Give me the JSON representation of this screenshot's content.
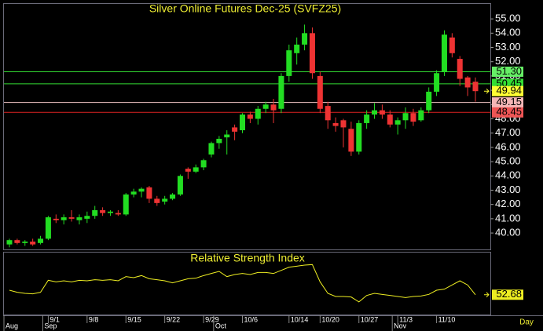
{
  "chart_data": [
    {
      "type": "candlestick",
      "title": "Silver Online Futures Dec-25 (SVFZ25)",
      "categories": [
        null,
        null,
        null,
        null,
        null,
        "9/1",
        null,
        null,
        null,
        null,
        "9/8",
        null,
        null,
        null,
        null,
        "9/15",
        null,
        null,
        null,
        null,
        "9/22",
        null,
        null,
        null,
        null,
        "9/29",
        null,
        null,
        null,
        null,
        "10/6",
        null,
        null,
        null,
        null,
        null,
        "10/14",
        null,
        null,
        null,
        "10/20",
        null,
        null,
        null,
        null,
        "10/27",
        null,
        null,
        null,
        null,
        "11/3",
        null,
        null,
        null,
        null,
        "11/10",
        null,
        null,
        null,
        null,
        null
      ],
      "months": [
        "Aug",
        null,
        null,
        null,
        null,
        "Sep",
        null,
        null,
        null,
        null,
        null,
        null,
        null,
        null,
        null,
        null,
        null,
        null,
        null,
        null,
        null,
        null,
        null,
        null,
        null,
        null,
        null,
        "Oct",
        null,
        null,
        null,
        null,
        null,
        null,
        null,
        null,
        null,
        null,
        null,
        null,
        null,
        null,
        null,
        null,
        null,
        null,
        null,
        null,
        null,
        null,
        "Nov",
        null,
        null,
        null,
        null,
        null,
        null,
        null,
        null,
        null,
        null
      ],
      "x_axis_label": "Day",
      "open": [
        39.2,
        39.5,
        39.3,
        39.4,
        39.3,
        39.6,
        41.0,
        40.9,
        41.1,
        40.9,
        41.0,
        41.2,
        41.6,
        41.4,
        41.4,
        41.3,
        42.7,
        42.9,
        43.2,
        42.4,
        42.2,
        42.4,
        42.7,
        44.5,
        44.3,
        44.6,
        45.5,
        46.3,
        46.7,
        47.4,
        47.2,
        48.3,
        48.0,
        48.7,
        49.0,
        48.7,
        51.0,
        52.6,
        53.2,
        54.0,
        51.0,
        48.9,
        47.7,
        47.9,
        47.3,
        45.7,
        47.7,
        48.3,
        48.6,
        48.3,
        47.6,
        47.9,
        48.4,
        47.9,
        48.6,
        49.9,
        51.3,
        53.7,
        52.2,
        50.9,
        50.6
      ],
      "high": [
        39.6,
        39.6,
        39.5,
        39.6,
        39.8,
        41.2,
        41.3,
        41.3,
        41.6,
        41.3,
        41.5,
        41.9,
        41.8,
        41.6,
        41.6,
        42.8,
        43.1,
        43.2,
        43.3,
        42.6,
        42.6,
        42.8,
        44.1,
        44.6,
        44.8,
        45.2,
        46.4,
        46.8,
        47.2,
        47.6,
        48.4,
        48.5,
        48.9,
        49.2,
        49.4,
        51.2,
        53.2,
        53.7,
        54.6,
        54.4,
        51.3,
        49.2,
        48.1,
        48.0,
        47.8,
        47.9,
        48.6,
        49.1,
        49.0,
        48.6,
        48.1,
        48.8,
        48.7,
        48.8,
        50.2,
        51.4,
        54.2,
        54.0,
        52.4,
        51.0,
        50.9
      ],
      "low": [
        39.0,
        39.2,
        39.1,
        39.1,
        39.2,
        39.5,
        40.7,
        40.6,
        40.8,
        40.6,
        40.7,
        41.0,
        41.2,
        41.2,
        41.2,
        41.2,
        42.5,
        42.5,
        42.1,
        41.9,
        42.0,
        42.3,
        42.6,
        43.8,
        44.2,
        44.4,
        45.3,
        45.9,
        45.5,
        46.5,
        47.0,
        47.7,
        47.6,
        48.4,
        47.7,
        48.4,
        50.6,
        51.8,
        52.8,
        50.8,
        48.4,
        47.3,
        47.1,
        46.0,
        45.4,
        45.5,
        47.3,
        48.0,
        48.0,
        47.4,
        46.9,
        47.3,
        47.5,
        47.8,
        48.4,
        49.6,
        51.0,
        52.3,
        50.3,
        49.6,
        49.2
      ],
      "close": [
        39.5,
        39.3,
        39.4,
        39.2,
        39.6,
        41.1,
        40.9,
        41.1,
        41.0,
        41.1,
        41.2,
        41.6,
        41.4,
        41.5,
        41.3,
        42.7,
        42.9,
        43.1,
        42.4,
        42.1,
        42.4,
        42.7,
        44.0,
        44.3,
        44.6,
        45.1,
        46.3,
        46.6,
        46.9,
        47.1,
        48.3,
        48.0,
        48.7,
        49.0,
        48.6,
        51.0,
        52.8,
        53.2,
        54.0,
        51.2,
        48.7,
        47.9,
        47.5,
        47.4,
        45.7,
        47.7,
        48.3,
        48.6,
        48.3,
        47.6,
        47.9,
        48.4,
        47.8,
        48.6,
        49.9,
        51.2,
        53.9,
        52.6,
        50.8,
        50.2,
        49.94
      ],
      "up_color": "#22dd22",
      "down_color": "#ee3333",
      "ylim": [
        38.85,
        56.05
      ],
      "yticks": [
        {
          "value": 40,
          "label": "40.00"
        },
        {
          "value": 41,
          "label": "41.00"
        },
        {
          "value": 42,
          "label": "42.00"
        },
        {
          "value": 43,
          "label": "43.00"
        },
        {
          "value": 44,
          "label": "44.00"
        },
        {
          "value": 45,
          "label": "45.00"
        },
        {
          "value": 46,
          "label": "46.00"
        },
        {
          "value": 47,
          "label": "47.00"
        },
        {
          "value": 48,
          "label": "48.00"
        },
        {
          "value": 49,
          "label": "49.00"
        },
        {
          "value": 50,
          "label": "50.00"
        },
        {
          "value": 51,
          "label": "51.00"
        },
        {
          "value": 52,
          "label": "52.00"
        },
        {
          "value": 53,
          "label": "53.00"
        },
        {
          "value": 54,
          "label": "54.00"
        },
        {
          "value": 55,
          "label": "55.00"
        }
      ],
      "levels": [
        {
          "value": 51.3,
          "label": "51.30",
          "color": "#33dd33",
          "box_color": "#66ee66",
          "show_line": true
        },
        {
          "value": 50.45,
          "label": "50.45",
          "color": "#33dd33",
          "box_color": "#33dd33",
          "show_line": true
        },
        {
          "value": 49.94,
          "label": "49.94",
          "color": "#ffff33",
          "box_color": "#ffff33",
          "show_line": false
        },
        {
          "value": 49.15,
          "label": "49.15",
          "color": "#f2c6c6",
          "box_color": "#f4b6b6",
          "show_line": true
        },
        {
          "value": 48.45,
          "label": "48.45",
          "color": "#dd2222",
          "box_color": "#ee5555",
          "show_line": true
        }
      ]
    },
    {
      "type": "line",
      "title": "Relative Strength Index",
      "values": [
        57,
        55,
        54,
        53.5,
        55,
        66.5,
        65,
        66,
        65,
        66.5,
        66,
        67,
        66.5,
        67,
        66,
        70,
        69,
        71,
        68,
        67,
        66,
        64,
        66,
        68,
        68.5,
        71,
        73,
        75,
        70,
        72,
        73,
        72,
        74,
        74,
        73,
        76,
        79,
        80,
        81,
        81.5,
        65,
        54,
        51,
        51,
        50.5,
        45.8,
        52,
        54,
        53,
        52,
        51,
        50,
        51,
        51.5,
        53,
        57,
        58,
        62,
        66,
        62,
        52.68
      ],
      "value_labels": [
        null,
        null,
        null,
        null,
        null,
        null,
        null,
        null,
        null,
        null,
        null,
        null,
        null,
        null,
        null,
        null,
        null,
        null,
        null,
        null,
        null,
        null,
        null,
        null,
        null,
        null,
        null,
        null,
        null,
        null,
        null,
        null,
        null,
        null,
        null,
        null,
        null,
        null,
        null,
        null,
        null,
        null,
        null,
        null,
        null,
        null,
        null,
        null,
        null,
        null,
        null,
        null,
        null,
        null,
        null,
        null,
        null,
        null,
        null,
        null,
        "52.68"
      ],
      "color": "#eeee22",
      "ylim": [
        33,
        93
      ]
    }
  ]
}
